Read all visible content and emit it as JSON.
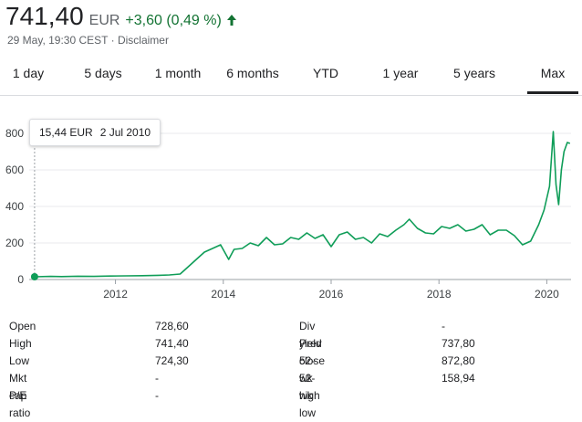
{
  "quote": {
    "price": "741,40",
    "currency": "EUR",
    "change": "+3,60 (0,49 %)",
    "timestamp": "29 May, 19:30 CEST",
    "separator": "·",
    "disclaimer": "Disclaimer"
  },
  "ranges": [
    {
      "label": "1 day"
    },
    {
      "label": "5 days"
    },
    {
      "label": "1 month"
    },
    {
      "label": "6 months"
    },
    {
      "label": "YTD"
    },
    {
      "label": "1 year"
    },
    {
      "label": "5 years"
    },
    {
      "label": "Max",
      "active": true
    }
  ],
  "tooltip": {
    "value": "15,44 EUR",
    "date": "2 Jul 2010"
  },
  "chart_data": {
    "type": "line",
    "title": "",
    "xlabel": "",
    "ylabel": "",
    "ylim": [
      0,
      800
    ],
    "yticks": [
      0,
      200,
      400,
      600,
      800
    ],
    "xlim": [
      2010.4,
      2020.45
    ],
    "xticks": [
      2012,
      2014,
      2016,
      2018,
      2020
    ],
    "grid": true,
    "color": "#0f9d58",
    "series": [
      {
        "x": [
          2010.5,
          2010.8,
          2011.0,
          2011.3,
          2011.6,
          2011.9,
          2012.2,
          2012.5,
          2012.8,
          2013.0,
          2013.2,
          2013.35,
          2013.5,
          2013.65,
          2013.8,
          2013.95,
          2014.1,
          2014.2,
          2014.35,
          2014.5,
          2014.65,
          2014.8,
          2014.95,
          2015.1,
          2015.25,
          2015.4,
          2015.55,
          2015.7,
          2015.85,
          2016.0,
          2016.15,
          2016.3,
          2016.45,
          2016.6,
          2016.75,
          2016.9,
          2017.05,
          2017.2,
          2017.35,
          2017.45,
          2017.6,
          2017.75,
          2017.9,
          2018.05,
          2018.2,
          2018.35,
          2018.5,
          2018.65,
          2018.8,
          2018.95,
          2019.1,
          2019.25,
          2019.4,
          2019.55,
          2019.7,
          2019.85,
          2019.95,
          2020.05,
          2020.12,
          2020.17,
          2020.22,
          2020.27,
          2020.32,
          2020.38,
          2020.43
        ],
        "y": [
          15,
          17,
          16,
          18,
          17,
          19,
          20,
          21,
          23,
          25,
          30,
          70,
          110,
          150,
          170,
          190,
          110,
          165,
          170,
          200,
          185,
          230,
          190,
          195,
          230,
          220,
          255,
          225,
          245,
          180,
          245,
          260,
          220,
          230,
          200,
          250,
          235,
          270,
          300,
          330,
          280,
          255,
          250,
          290,
          280,
          300,
          265,
          275,
          300,
          245,
          270,
          270,
          240,
          190,
          210,
          300,
          380,
          510,
          810,
          520,
          410,
          600,
          700,
          750,
          745
        ]
      }
    ]
  }
}
